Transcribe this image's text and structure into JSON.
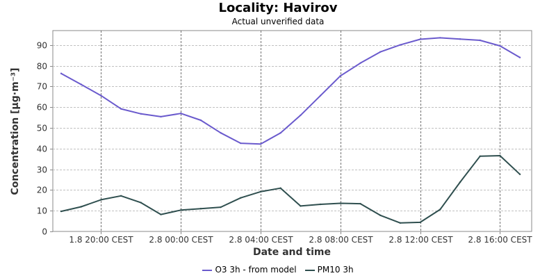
{
  "chart_data": {
    "type": "line",
    "title": "Locality: Havirov",
    "subtitle": "Actual unverified data",
    "xlabel": "Date and time",
    "ylabel": "Concentration [µg·m⁻³]",
    "ylim": [
      0,
      97
    ],
    "yticks": [
      0,
      10,
      20,
      30,
      40,
      50,
      60,
      70,
      80,
      90
    ],
    "x": [
      "1.8 18:00",
      "1.8 19:00",
      "1.8 20:00",
      "1.8 21:00",
      "1.8 22:00",
      "1.8 23:00",
      "2.8 00:00",
      "2.8 01:00",
      "2.8 02:00",
      "2.8 03:00",
      "2.8 04:00",
      "2.8 05:00",
      "2.8 06:00",
      "2.8 07:00",
      "2.8 08:00",
      "2.8 09:00",
      "2.8 10:00",
      "2.8 11:00",
      "2.8 12:00",
      "2.8 13:00",
      "2.8 14:00",
      "2.8 15:00",
      "2.8 16:00",
      "2.8 17:00"
    ],
    "xticks": [
      {
        "index": 2,
        "label": "1.8 20:00 CEST"
      },
      {
        "index": 6,
        "label": "2.8 00:00 CEST"
      },
      {
        "index": 10,
        "label": "2.8 04:00 CEST"
      },
      {
        "index": 14,
        "label": "2.8 08:00 CEST"
      },
      {
        "index": 18,
        "label": "2.8 12:00 CEST"
      },
      {
        "index": 22,
        "label": "2.8 16:00 CEST"
      }
    ],
    "series": [
      {
        "name": "O3 3h - from model",
        "color": "#6a5acd",
        "values": [
          76.3,
          71.0,
          65.6,
          59.2,
          56.8,
          55.4,
          57.0,
          53.7,
          47.6,
          42.6,
          42.2,
          47.6,
          56.1,
          65.6,
          75.1,
          81.3,
          86.7,
          90.1,
          92.8,
          93.5,
          92.9,
          92.3,
          89.6,
          84.0
        ]
      },
      {
        "name": "PM10 3h",
        "color": "#2f4f4f",
        "values": [
          9.7,
          11.9,
          15.3,
          17.2,
          13.9,
          8.2,
          10.3,
          11.0,
          11.7,
          16.2,
          19.2,
          20.9,
          12.3,
          13.1,
          13.6,
          13.4,
          7.8,
          4.1,
          4.4,
          10.6,
          23.8,
          36.3,
          36.6,
          27.6
        ]
      }
    ],
    "grid": true,
    "legend_position": "bottom"
  }
}
